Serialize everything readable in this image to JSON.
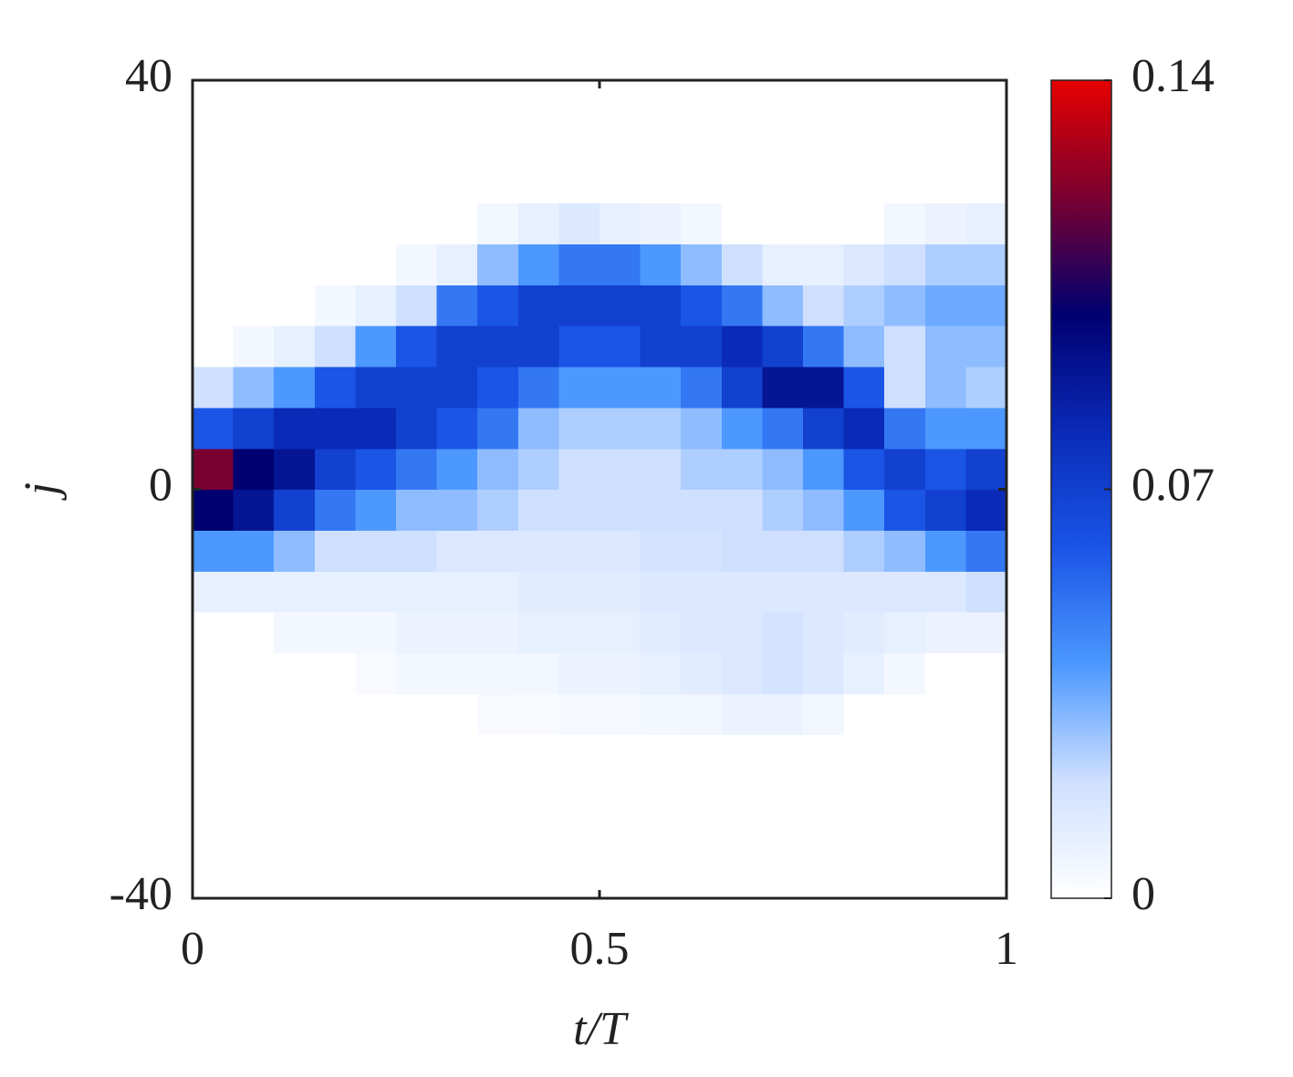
{
  "chart_data": {
    "type": "heatmap",
    "xlabel": "t/T",
    "ylabel": "j",
    "xlim": [
      0,
      1
    ],
    "ylim": [
      -40,
      40
    ],
    "xticks": [
      0,
      0.5,
      1
    ],
    "yticks": [
      -40,
      0,
      40
    ],
    "clim": [
      0,
      0.14
    ],
    "cticks": [
      0,
      0.07,
      0.14
    ],
    "colormap": [
      "#ffffff",
      "#cfe0ff",
      "#4c98ff",
      "#1a55e6",
      "#0a2ab8",
      "#000070",
      "#7a0030",
      "#e60000"
    ],
    "x": [
      0.025,
      0.075,
      0.125,
      0.175,
      0.225,
      0.275,
      0.325,
      0.375,
      0.425,
      0.475,
      0.525,
      0.575,
      0.625,
      0.675,
      0.725,
      0.775,
      0.825,
      0.875,
      0.925,
      0.975
    ],
    "y": [
      -38,
      -34,
      -30,
      -26,
      -22,
      -18,
      -14,
      -10,
      -6,
      -2,
      2,
      6,
      10,
      14,
      18,
      22,
      26,
      30,
      34,
      38
    ],
    "z": [
      [
        0,
        0,
        0,
        0,
        0,
        0,
        0,
        0,
        0,
        0,
        0,
        0,
        0,
        0,
        0,
        0,
        0,
        0,
        0,
        0
      ],
      [
        0,
        0,
        0,
        0,
        0,
        0,
        0,
        0,
        0,
        0,
        0,
        0,
        0,
        0,
        0,
        0,
        0,
        0,
        0,
        0
      ],
      [
        0,
        0,
        0,
        0,
        0,
        0,
        0,
        0,
        0,
        0,
        0,
        0,
        0,
        0,
        0,
        0,
        0,
        0,
        0,
        0
      ],
      [
        0,
        0,
        0,
        0,
        0,
        0,
        0,
        0,
        0,
        0,
        0,
        0,
        0,
        0,
        0,
        0,
        0,
        0,
        0,
        0
      ],
      [
        0,
        0,
        0,
        0,
        0,
        0,
        0,
        0.003,
        0.003,
        0.004,
        0.004,
        0.005,
        0.006,
        0.008,
        0.008,
        0.006,
        0,
        0,
        0,
        0
      ],
      [
        0,
        0,
        0,
        0,
        0.003,
        0.005,
        0.005,
        0.005,
        0.006,
        0.008,
        0.008,
        0.01,
        0.012,
        0.015,
        0.018,
        0.015,
        0.01,
        0.005,
        0,
        0
      ],
      [
        0,
        0,
        0.005,
        0.005,
        0.005,
        0.008,
        0.008,
        0.008,
        0.01,
        0.01,
        0.01,
        0.012,
        0.015,
        0.015,
        0.018,
        0.015,
        0.012,
        0.01,
        0.008,
        0.008
      ],
      [
        0.01,
        0.01,
        0.01,
        0.01,
        0.01,
        0.01,
        0.01,
        0.01,
        0.012,
        0.012,
        0.012,
        0.015,
        0.015,
        0.015,
        0.015,
        0.015,
        0.015,
        0.015,
        0.015,
        0.02
      ],
      [
        0.04,
        0.04,
        0.03,
        0.02,
        0.02,
        0.02,
        0.015,
        0.015,
        0.015,
        0.015,
        0.015,
        0.018,
        0.018,
        0.02,
        0.02,
        0.02,
        0.025,
        0.03,
        0.04,
        0.05
      ],
      [
        0.1,
        0.09,
        0.07,
        0.05,
        0.04,
        0.03,
        0.03,
        0.025,
        0.02,
        0.02,
        0.02,
        0.02,
        0.02,
        0.02,
        0.025,
        0.03,
        0.04,
        0.06,
        0.07,
        0.08
      ],
      [
        0.12,
        0.1,
        0.09,
        0.07,
        0.06,
        0.05,
        0.04,
        0.03,
        0.025,
        0.02,
        0.02,
        0.02,
        0.025,
        0.025,
        0.03,
        0.04,
        0.06,
        0.07,
        0.06,
        0.07
      ],
      [
        0.06,
        0.07,
        0.08,
        0.08,
        0.08,
        0.07,
        0.06,
        0.05,
        0.03,
        0.025,
        0.025,
        0.025,
        0.03,
        0.04,
        0.05,
        0.07,
        0.08,
        0.05,
        0.04,
        0.04
      ],
      [
        0.02,
        0.03,
        0.04,
        0.06,
        0.07,
        0.07,
        0.07,
        0.06,
        0.05,
        0.04,
        0.04,
        0.04,
        0.05,
        0.07,
        0.09,
        0.09,
        0.06,
        0.02,
        0.03,
        0.025
      ],
      [
        0,
        0.005,
        0.01,
        0.02,
        0.04,
        0.06,
        0.07,
        0.07,
        0.07,
        0.06,
        0.06,
        0.07,
        0.07,
        0.08,
        0.07,
        0.05,
        0.03,
        0.02,
        0.03,
        0.03
      ],
      [
        0,
        0,
        0,
        0.005,
        0.01,
        0.02,
        0.05,
        0.06,
        0.07,
        0.07,
        0.07,
        0.07,
        0.06,
        0.05,
        0.03,
        0.02,
        0.025,
        0.03,
        0.035,
        0.035
      ],
      [
        0,
        0,
        0,
        0,
        0,
        0.005,
        0.01,
        0.03,
        0.04,
        0.05,
        0.05,
        0.04,
        0.03,
        0.02,
        0.01,
        0.01,
        0.015,
        0.02,
        0.025,
        0.025
      ],
      [
        0,
        0,
        0,
        0,
        0,
        0,
        0,
        0.005,
        0.01,
        0.015,
        0.01,
        0.008,
        0.005,
        0,
        0,
        0,
        0,
        0.005,
        0.008,
        0.01
      ],
      [
        0,
        0,
        0,
        0,
        0,
        0,
        0,
        0,
        0,
        0,
        0,
        0,
        0,
        0,
        0,
        0,
        0,
        0,
        0,
        0
      ],
      [
        0,
        0,
        0,
        0,
        0,
        0,
        0,
        0,
        0,
        0,
        0,
        0,
        0,
        0,
        0,
        0,
        0,
        0,
        0,
        0
      ],
      [
        0,
        0,
        0,
        0,
        0,
        0,
        0,
        0,
        0,
        0,
        0,
        0,
        0,
        0,
        0,
        0,
        0,
        0,
        0,
        0
      ]
    ]
  }
}
